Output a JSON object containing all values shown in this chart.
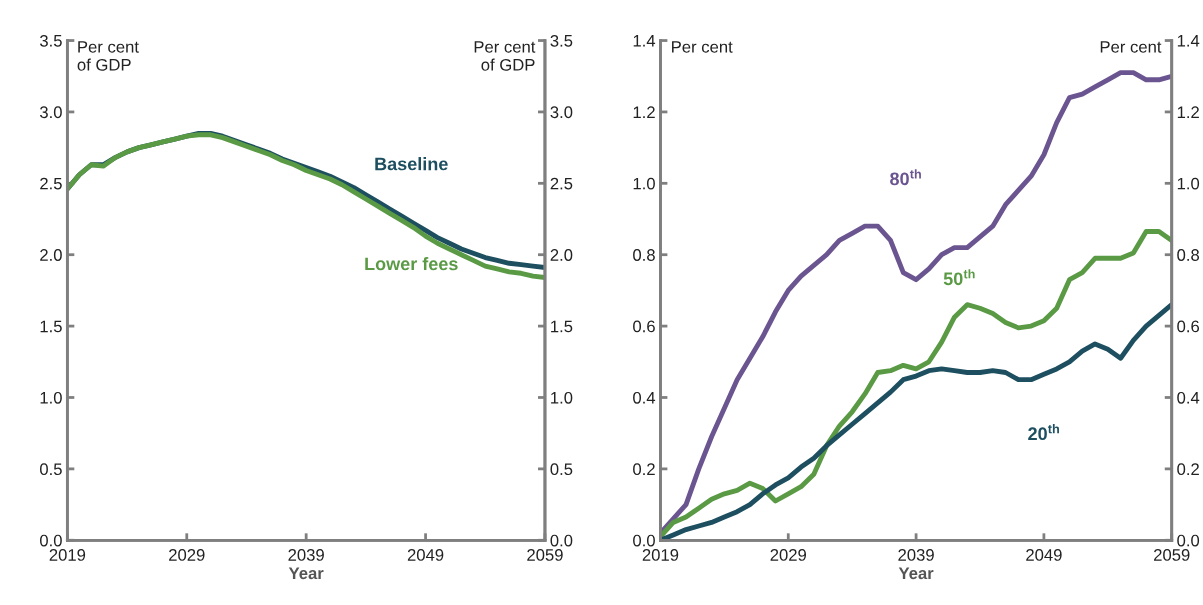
{
  "chart_data": [
    {
      "type": "line",
      "xlabel": "Year",
      "ylabel": "Per cent\nof GDP",
      "y2label": "Per cent\nof GDP",
      "x": [
        2019,
        2020,
        2021,
        2022,
        2023,
        2024,
        2025,
        2026,
        2027,
        2028,
        2029,
        2030,
        2031,
        2032,
        2033,
        2034,
        2035,
        2036,
        2037,
        2038,
        2039,
        2040,
        2041,
        2042,
        2043,
        2044,
        2045,
        2046,
        2047,
        2048,
        2049,
        2050,
        2051,
        2052,
        2053,
        2054,
        2055,
        2056,
        2057,
        2058,
        2059
      ],
      "series": [
        {
          "name": "Baseline",
          "color": "#1d4f60",
          "values": [
            2.46,
            2.56,
            2.63,
            2.63,
            2.68,
            2.72,
            2.75,
            2.77,
            2.79,
            2.81,
            2.83,
            2.85,
            2.85,
            2.83,
            2.8,
            2.77,
            2.74,
            2.71,
            2.67,
            2.64,
            2.61,
            2.58,
            2.55,
            2.51,
            2.47,
            2.42,
            2.37,
            2.32,
            2.27,
            2.22,
            2.17,
            2.12,
            2.08,
            2.04,
            2.01,
            1.98,
            1.96,
            1.94,
            1.93,
            1.92,
            1.91
          ]
        },
        {
          "name": "Lower fees",
          "color": "#5a9a45",
          "values": [
            2.46,
            2.56,
            2.63,
            2.62,
            2.68,
            2.72,
            2.75,
            2.77,
            2.79,
            2.81,
            2.83,
            2.84,
            2.84,
            2.82,
            2.79,
            2.76,
            2.73,
            2.7,
            2.66,
            2.63,
            2.59,
            2.56,
            2.53,
            2.49,
            2.44,
            2.39,
            2.34,
            2.29,
            2.24,
            2.19,
            2.13,
            2.08,
            2.04,
            2.0,
            1.96,
            1.92,
            1.9,
            1.88,
            1.87,
            1.85,
            1.84
          ]
        }
      ],
      "xlim": [
        2019,
        2059
      ],
      "xticks": [
        2019,
        2029,
        2039,
        2049,
        2059
      ],
      "ylim": [
        0,
        3.5
      ],
      "yticks": [
        {
          "value": 0,
          "label": "0.0"
        },
        0.5,
        {
          "value": 1,
          "label": "1.0"
        },
        1.5,
        {
          "value": 2,
          "label": "2.0"
        },
        2.5,
        {
          "value": 3,
          "label": "3.0"
        },
        3.5
      ],
      "y2lim": [
        0,
        3.5
      ],
      "y2ticks": [
        {
          "value": 0,
          "label": "0.0"
        },
        0.5,
        {
          "value": 1,
          "label": "1.0"
        },
        1.5,
        {
          "value": 2,
          "label": "2.0"
        },
        2.5,
        {
          "value": 3,
          "label": "3.0"
        },
        3.5
      ],
      "grid": false,
      "legend": false
    },
    {
      "type": "line",
      "xlabel": "Year",
      "ylabel": "Per cent",
      "y2label": "Per cent",
      "x": [
        2019,
        2020,
        2021,
        2022,
        2023,
        2024,
        2025,
        2026,
        2027,
        2028,
        2029,
        2030,
        2031,
        2032,
        2033,
        2034,
        2035,
        2036,
        2037,
        2038,
        2039,
        2040,
        2041,
        2042,
        2043,
        2044,
        2045,
        2046,
        2047,
        2048,
        2049,
        2050,
        2051,
        2052,
        2053,
        2054,
        2055,
        2056,
        2057,
        2058,
        2059
      ],
      "series": [
        {
          "name": "80$^{th}$",
          "color": "#6b5590",
          "values": [
            0.02,
            0.06,
            0.1,
            0.2,
            0.29,
            0.37,
            0.45,
            0.51,
            0.57,
            0.64,
            0.7,
            0.74,
            0.77,
            0.8,
            0.84,
            0.86,
            0.88,
            0.88,
            0.84,
            0.75,
            0.73,
            0.76,
            0.8,
            0.82,
            0.82,
            0.85,
            0.88,
            0.94,
            0.98,
            1.02,
            1.08,
            1.17,
            1.24,
            1.25,
            1.27,
            1.29,
            1.31,
            1.31,
            1.29,
            1.29,
            1.3
          ]
        },
        {
          "name": "50$^{th}$",
          "color": "#5a9a45",
          "values": [
            0.01,
            0.05,
            0.065,
            0.09,
            0.115,
            0.13,
            0.14,
            0.16,
            0.145,
            0.11,
            0.13,
            0.15,
            0.185,
            0.265,
            0.32,
            0.36,
            0.41,
            0.47,
            0.475,
            0.49,
            0.48,
            0.5,
            0.555,
            0.625,
            0.66,
            0.65,
            0.635,
            0.61,
            0.595,
            0.6,
            0.615,
            0.65,
            0.73,
            0.75,
            0.79,
            0.79,
            0.79,
            0.805,
            0.865,
            0.865,
            0.84
          ]
        },
        {
          "name": "20$^{th}$",
          "color": "#1d4f60",
          "values": [
            0.0,
            0.015,
            0.03,
            0.04,
            0.05,
            0.065,
            0.08,
            0.1,
            0.13,
            0.155,
            0.175,
            0.205,
            0.23,
            0.265,
            0.295,
            0.325,
            0.355,
            0.385,
            0.415,
            0.45,
            0.46,
            0.475,
            0.48,
            0.475,
            0.47,
            0.47,
            0.475,
            0.47,
            0.45,
            0.45,
            0.465,
            0.48,
            0.5,
            0.53,
            0.55,
            0.535,
            0.51,
            0.56,
            0.6,
            0.63,
            0.66
          ]
        }
      ],
      "xlim": [
        2019,
        2059
      ],
      "xticks": [
        2019,
        2029,
        2039,
        2049,
        2059
      ],
      "ylim": [
        0,
        1.4
      ],
      "yticks": [
        {
          "value": 0,
          "label": "0.0"
        },
        0.2,
        0.4,
        0.6,
        0.8,
        {
          "value": 1,
          "label": "1.0"
        },
        1.2,
        1.4
      ],
      "y2lim": [
        0,
        1.4
      ],
      "y2ticks": [
        {
          "value": 0,
          "label": "0.0"
        },
        0.2,
        0.4,
        0.6,
        0.8,
        {
          "value": 1,
          "label": "1.0"
        },
        1.2,
        1.4
      ],
      "grid": false,
      "legend": false
    }
  ]
}
